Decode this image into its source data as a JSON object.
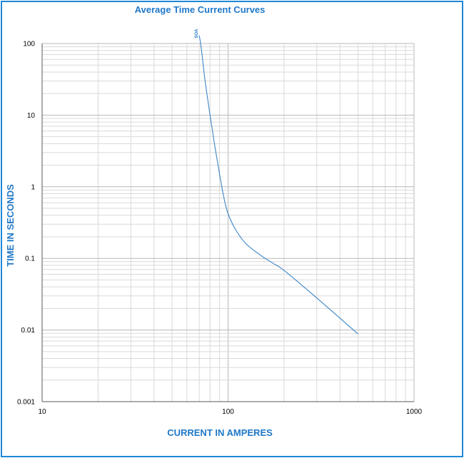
{
  "chart_data": {
    "type": "line",
    "title": "Average Time Current Curves",
    "xlabel": "CURRENT IN AMPERES",
    "ylabel": "TIME IN SECONDS",
    "x_scale": "log",
    "y_scale": "log",
    "xlim": [
      10,
      1000
    ],
    "ylim": [
      0.001,
      100
    ],
    "x_ticks": [
      "10",
      "100",
      "1000"
    ],
    "y_ticks": [
      "100",
      "10",
      "1",
      "0.1",
      "0.01",
      "0.001"
    ],
    "grid": true,
    "series": [
      {
        "name": "SOA",
        "color": "#3d85c6",
        "x": [
          70,
          72,
          75,
          80,
          85,
          90,
          95,
          100,
          110,
          125,
          150,
          175,
          200,
          300,
          500
        ],
        "y": [
          130,
          80,
          32,
          10,
          3.6,
          1.5,
          0.7,
          0.42,
          0.25,
          0.16,
          0.11,
          0.085,
          0.068,
          0.028,
          0.0088
        ]
      }
    ]
  }
}
